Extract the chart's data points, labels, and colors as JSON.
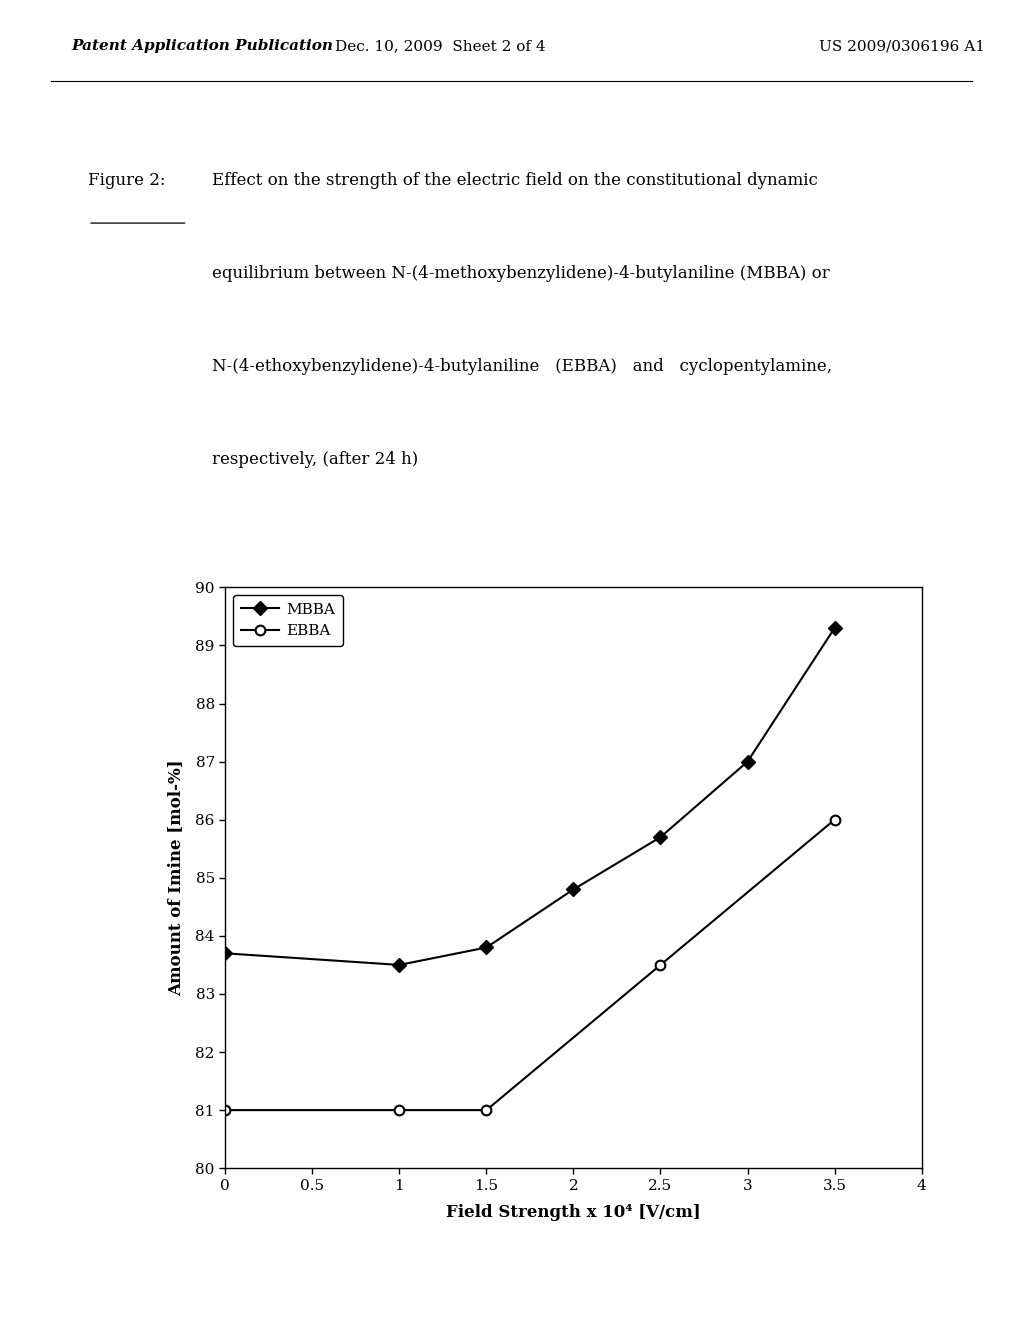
{
  "mbba_x": [
    0,
    1.0,
    1.5,
    2.0,
    2.5,
    3.0,
    3.5
  ],
  "mbba_y": [
    83.7,
    83.5,
    83.8,
    84.8,
    85.7,
    87.0,
    89.3
  ],
  "ebba_x": [
    0,
    1.0,
    1.5,
    2.5,
    3.5
  ],
  "ebba_y": [
    81.0,
    81.0,
    81.0,
    83.5,
    86.0
  ],
  "xlim": [
    0,
    4
  ],
  "ylim": [
    80,
    90
  ],
  "yticks": [
    80,
    81,
    82,
    83,
    84,
    85,
    86,
    87,
    88,
    89,
    90
  ],
  "xticks": [
    0,
    0.5,
    1,
    1.5,
    2,
    2.5,
    3,
    3.5,
    4
  ],
  "xlabel": "Field Strength x 10⁴ [V/cm]",
  "ylabel": "Amount of Imine [mol-%]",
  "legend_mbba": "MBBA",
  "legend_ebba": "EBBA",
  "line_color": "#000000",
  "bg_color": "#ffffff",
  "figure_label": "Figure 2:",
  "caption_line1": "Effect on the strength of the electric field on the constitutional dynamic",
  "caption_line2": "equilibrium between N-(4-methoxybenzylidene)-4-butylaniline (MBBA) or",
  "caption_line3": "N-(4-ethoxybenzylidene)-4-butylaniline   (EBBA)   and   cyclopentylamine,",
  "caption_line4": "respectively, (after 24 h)",
  "header_left": "Patent Application Publication",
  "header_mid": "Dec. 10, 2009  Sheet 2 of 4",
  "header_right": "US 2009/0306196 A1"
}
